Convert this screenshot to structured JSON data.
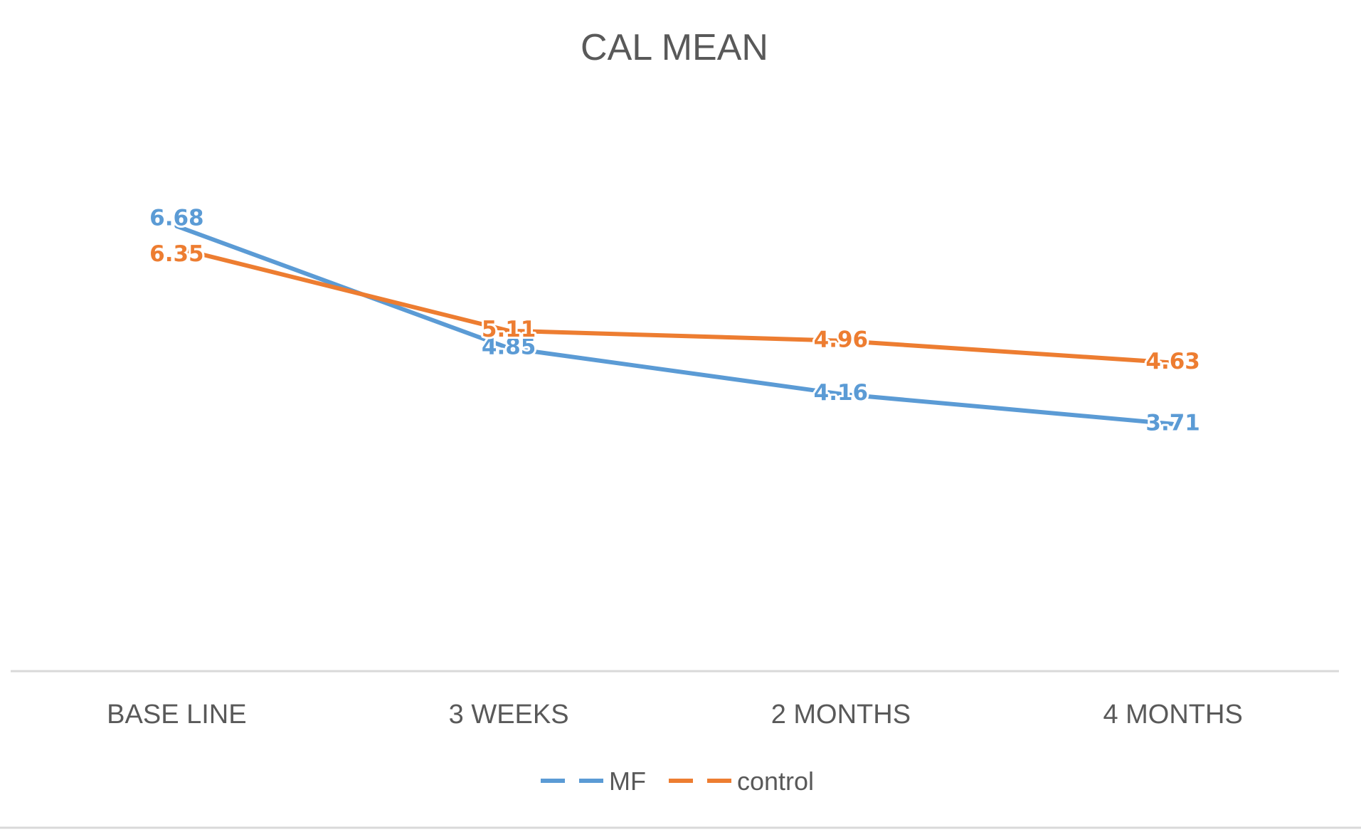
{
  "chart_data": {
    "type": "line",
    "title": "CAL MEAN",
    "categories": [
      "BASE LINE",
      "3 WEEKS",
      "2 MONTHS",
      "4 MONTHS"
    ],
    "series": [
      {
        "name": "MF",
        "values": [
          6.68,
          4.85,
          4.16,
          3.71
        ],
        "color": "#5B9BD5"
      },
      {
        "name": "control",
        "values": [
          6.35,
          5.11,
          4.96,
          4.63
        ],
        "color": "#ED7D31"
      }
    ],
    "ylim": [
      0,
      8.9
    ],
    "grid": false,
    "axis_line_color": "#D9D9D9",
    "legend": {
      "position": "bottom"
    }
  }
}
